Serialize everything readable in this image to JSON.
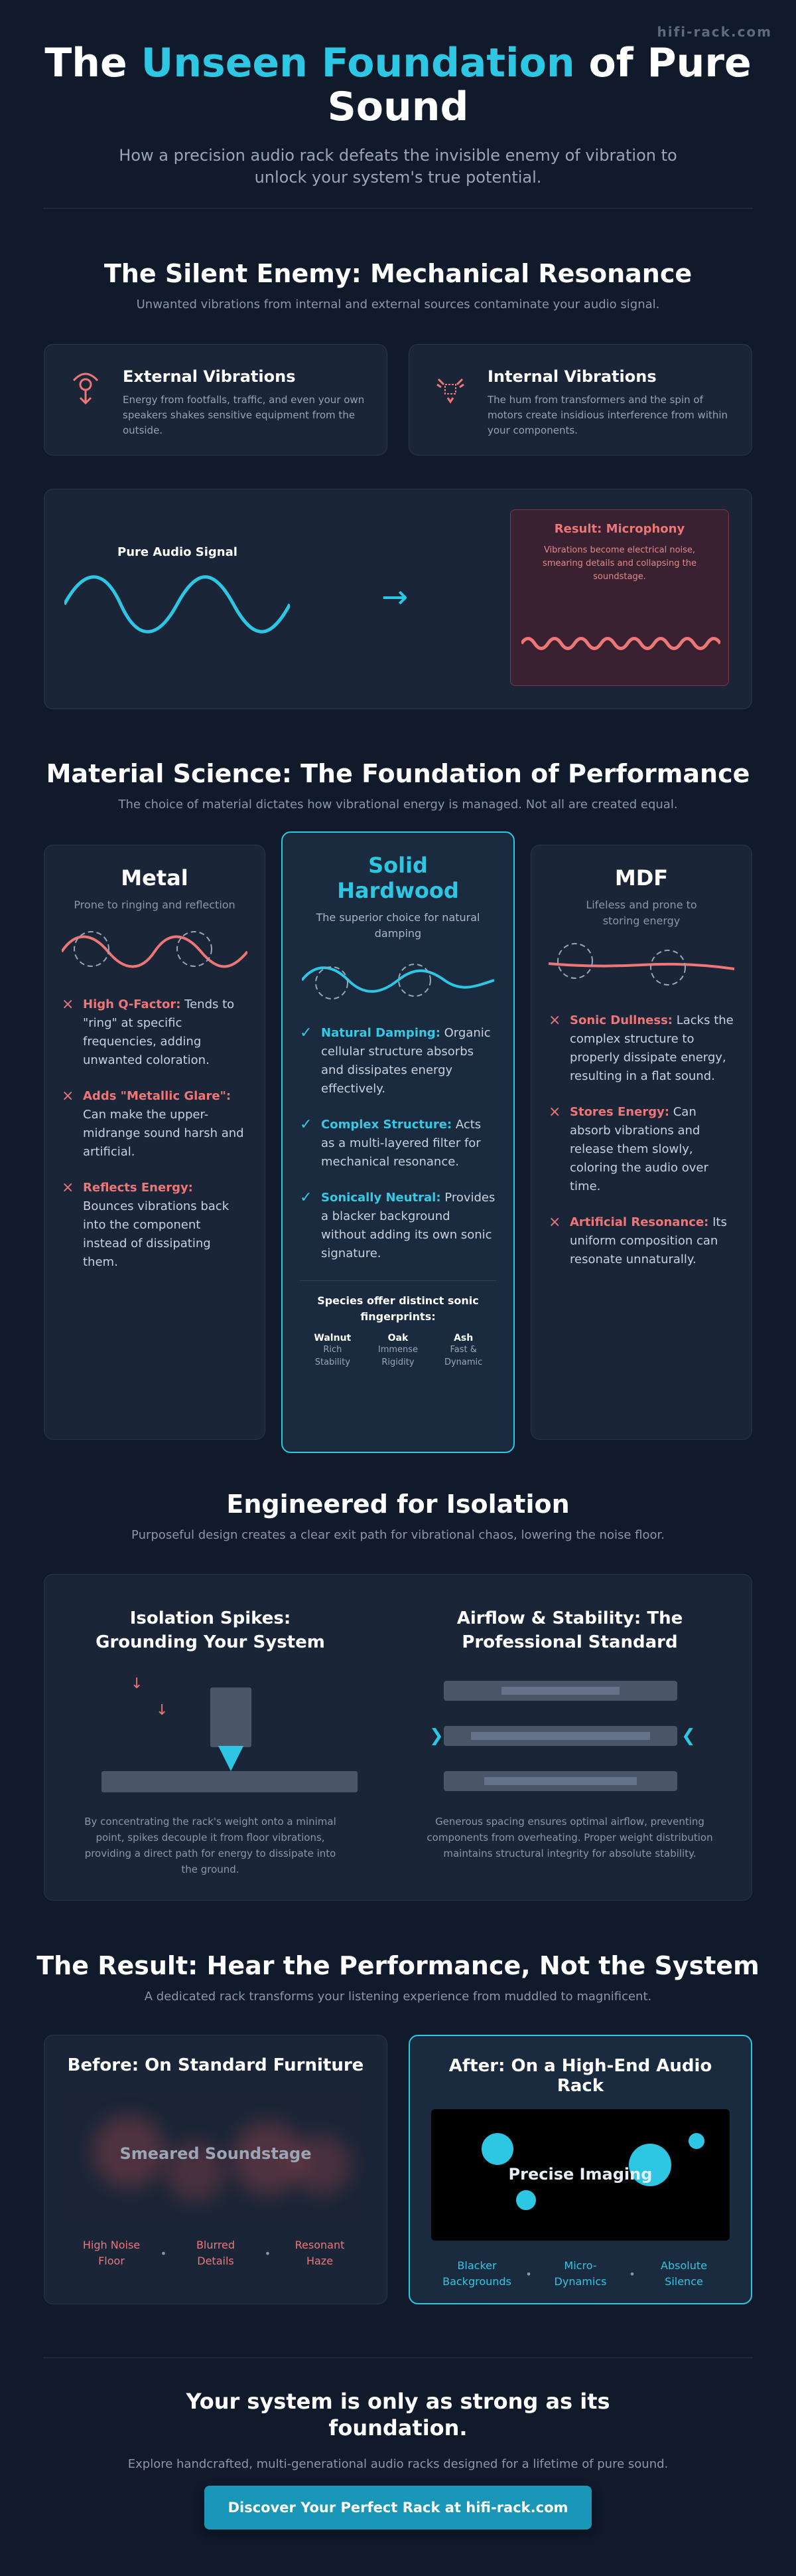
{
  "watermark": "hifi-rack.com",
  "hero": {
    "title_before": "The ",
    "title_highlight": "Unseen Foundation",
    "title_after": " of Pure Sound",
    "subtitle": "How a precision audio rack defeats the invisible enemy of vibration to unlock your system's true potential."
  },
  "resonance": {
    "title": "The Silent Enemy: Mechanical Resonance",
    "subtitle": "Unwanted vibrations from internal and external sources contaminate your audio signal.",
    "cards": [
      {
        "icon": "footstep-vibration-icon",
        "title": "External Vibrations",
        "text": "Energy from footfalls, traffic, and even your own speakers shakes sensitive equipment from the outside."
      },
      {
        "icon": "transformer-hum-icon",
        "title": "Internal Vibrations",
        "text": "The hum from transformers and the spin of motors create insidious interference from within your components."
      }
    ],
    "diagram": {
      "signal_label": "Pure Audio Signal",
      "arrow": "→",
      "result_title": "Result: Microphony",
      "result_text": "Vibrations become electrical noise, smearing details and collapsing the soundstage."
    }
  },
  "materials": {
    "title": "Material Science: The Foundation of Performance",
    "subtitle": "The choice of material dictates how vibrational energy is managed. Not all are created equal.",
    "cards": [
      {
        "name": "Metal",
        "tagline": "Prone to ringing and reflection",
        "points": [
          {
            "label": "High Q-Factor:",
            "text": " Tends to \"ring\" at specific frequencies, adding unwanted coloration."
          },
          {
            "label": "Adds \"Metallic Glare\":",
            "text": " Can make the upper-midrange sound harsh and artificial."
          },
          {
            "label": "Reflects Energy:",
            "text": " Bounces vibrations back into the component instead of dissipating them."
          }
        ]
      },
      {
        "name": "Solid Hardwood",
        "tagline": "The superior choice for natural damping",
        "points": [
          {
            "label": "Natural Damping:",
            "text": " Organic cellular structure absorbs and dissipates energy effectively."
          },
          {
            "label": "Complex Structure:",
            "text": " Acts as a multi-layered filter for mechanical resonance."
          },
          {
            "label": "Sonically Neutral:",
            "text": " Provides a blacker background without adding its own sonic signature."
          }
        ],
        "species_title": "Species offer distinct sonic fingerprints:",
        "species": [
          {
            "name": "Walnut",
            "desc": "Rich Stability"
          },
          {
            "name": "Oak",
            "desc": "Immense Rigidity"
          },
          {
            "name": "Ash",
            "desc": "Fast & Dynamic"
          }
        ]
      },
      {
        "name": "MDF",
        "tagline": "Lifeless and prone to storing energy",
        "points": [
          {
            "label": "Sonic Dullness:",
            "text": " Lacks the complex structure to properly dissipate energy, resulting in a flat sound."
          },
          {
            "label": "Stores Energy:",
            "text": " Can absorb vibrations and release them slowly, coloring the audio over time."
          },
          {
            "label": "Artificial Resonance:",
            "text": " Its uniform composition can resonate unnaturally."
          }
        ]
      }
    ]
  },
  "isolation": {
    "title": "Engineered for Isolation",
    "subtitle": "Purposeful design creates a clear exit path for vibrational chaos, lowering the noise floor.",
    "spikes": {
      "title": "Isolation Spikes: Grounding Your System",
      "text": "By concentrating the rack's weight onto a minimal point, spikes decouple it from floor vibrations, providing a direct path for energy to dissipate into the ground.",
      "arrow": "↓"
    },
    "airflow": {
      "title": "Airflow & Stability: The Professional Standard",
      "text": "Generous spacing ensures optimal airflow, preventing components from overheating. Proper weight distribution maintains structural integrity for absolute stability.",
      "chevron_left": "❯",
      "chevron_right": "❮"
    }
  },
  "result": {
    "title": "The Result: Hear the Performance, Not the System",
    "subtitle": "A dedicated rack transforms your listening experience from muddled to magnificent.",
    "before": {
      "title": "Before: On Standard Furniture",
      "visual_label": "Smeared Soundstage",
      "tags": [
        "High Noise Floor",
        "Blurred Details",
        "Resonant Haze"
      ]
    },
    "after": {
      "title": "After: On a High-End Audio Rack",
      "visual_label": "Precise Imaging",
      "tags": [
        "Blacker Backgrounds",
        "Micro-Dynamics",
        "Absolute Silence"
      ]
    },
    "separator": "•"
  },
  "cta": {
    "title": "Your system is only as strong as its foundation.",
    "subtitle": "Explore handcrafted, multi-generational audio racks designed for a lifetime of pure sound.",
    "button": "Discover Your Perfect Rack at hifi-rack.com"
  },
  "colors": {
    "accent": "#2ec7e3",
    "danger": "#ef7676",
    "background": "#101a2b",
    "card": "#1a2538"
  }
}
